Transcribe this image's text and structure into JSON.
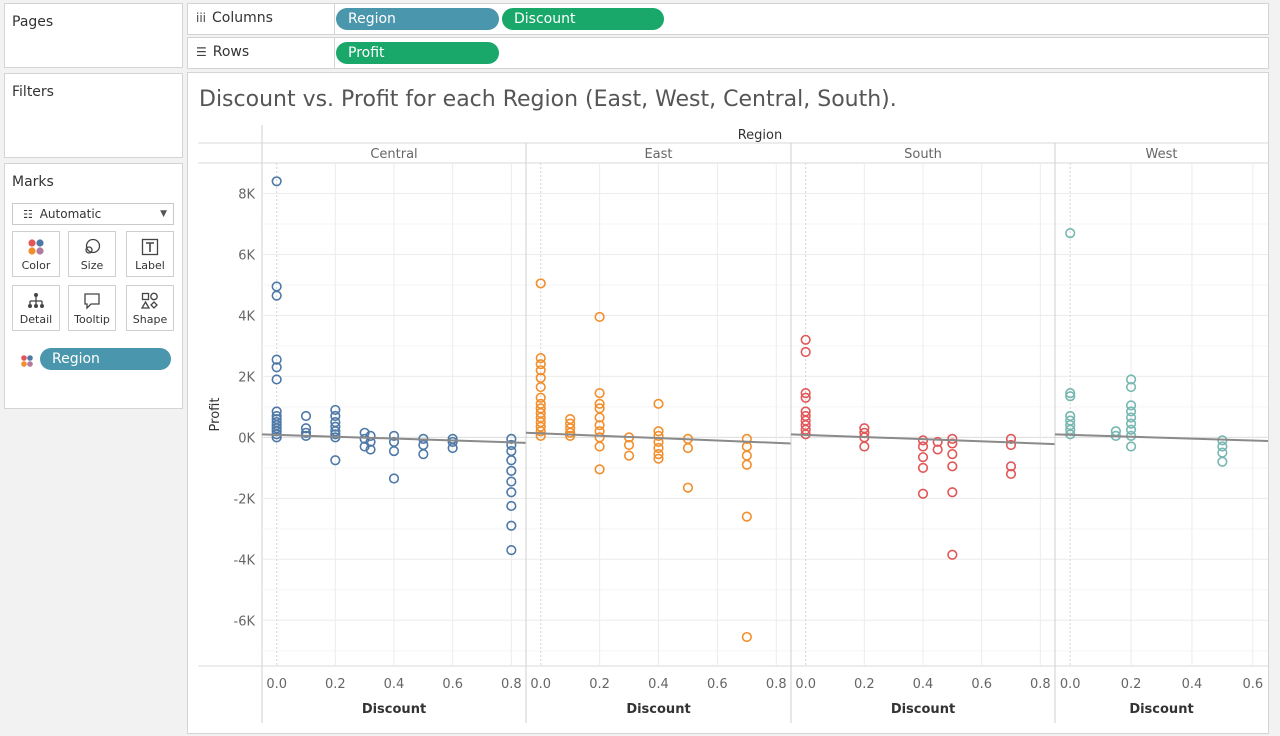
{
  "left_panel": {
    "pages_title": "Pages",
    "filters_title": "Filters",
    "marks_title": "Marks",
    "mark_type": "Automatic",
    "mark_buttons": [
      {
        "label": "Color",
        "icon": "color-icon"
      },
      {
        "label": "Size",
        "icon": "size-icon"
      },
      {
        "label": "Label",
        "icon": "label-icon"
      },
      {
        "label": "Detail",
        "icon": "detail-icon"
      },
      {
        "label": "Tooltip",
        "icon": "tooltip-icon"
      },
      {
        "label": "Shape",
        "icon": "shape-icon"
      }
    ],
    "color_pill": "Region"
  },
  "shelves": {
    "columns_label": "Columns",
    "rows_label": "Rows",
    "column_pills": [
      "Region",
      "Discount"
    ],
    "row_pills": [
      "Profit"
    ]
  },
  "view": {
    "title": "Discount vs. Profit for each Region (East, West, Central, South)."
  },
  "chart_data": {
    "type": "scatter",
    "header": "Region",
    "ylabel": "Profit",
    "xlabel": "Discount",
    "ylim": [
      -7500,
      9000
    ],
    "y_ticks": [
      "8K",
      "6K",
      "4K",
      "2K",
      "0K",
      "-2K",
      "-4K",
      "-6K"
    ],
    "y_tick_values": [
      8000,
      6000,
      4000,
      2000,
      0,
      -2000,
      -4000,
      -6000
    ],
    "grid": true,
    "trend_lines": true,
    "panels": [
      {
        "name": "Central",
        "color": "#4e79a7",
        "xlim": [
          -0.05,
          0.85
        ],
        "x_ticks": [
          "0.0",
          "0.2",
          "0.4",
          "0.6",
          "0.8"
        ],
        "x_tick_values": [
          0,
          0.2,
          0.4,
          0.6,
          0.8
        ],
        "trend": [
          [
            -0.05,
            100
          ],
          [
            0.85,
            -180
          ]
        ],
        "points": [
          [
            0,
            8400
          ],
          [
            0,
            4950
          ],
          [
            0,
            4650
          ],
          [
            0,
            2550
          ],
          [
            0,
            2300
          ],
          [
            0,
            1900
          ],
          [
            0,
            850
          ],
          [
            0,
            700
          ],
          [
            0,
            600
          ],
          [
            0,
            500
          ],
          [
            0,
            400
          ],
          [
            0,
            300
          ],
          [
            0,
            200
          ],
          [
            0,
            100
          ],
          [
            0,
            0
          ],
          [
            0.1,
            700
          ],
          [
            0.1,
            300
          ],
          [
            0.1,
            150
          ],
          [
            0.1,
            50
          ],
          [
            0.2,
            900
          ],
          [
            0.2,
            700
          ],
          [
            0.2,
            500
          ],
          [
            0.2,
            350
          ],
          [
            0.2,
            200
          ],
          [
            0.2,
            100
          ],
          [
            0.2,
            0
          ],
          [
            0.2,
            -750
          ],
          [
            0.3,
            150
          ],
          [
            0.3,
            -50
          ],
          [
            0.3,
            -300
          ],
          [
            0.32,
            50
          ],
          [
            0.32,
            -150
          ],
          [
            0.32,
            -400
          ],
          [
            0.4,
            50
          ],
          [
            0.4,
            -150
          ],
          [
            0.4,
            -450
          ],
          [
            0.4,
            -1350
          ],
          [
            0.5,
            -50
          ],
          [
            0.5,
            -250
          ],
          [
            0.5,
            -550
          ],
          [
            0.6,
            -50
          ],
          [
            0.6,
            -150
          ],
          [
            0.6,
            -350
          ],
          [
            0.8,
            -50
          ],
          [
            0.8,
            -250
          ],
          [
            0.8,
            -450
          ],
          [
            0.8,
            -750
          ],
          [
            0.8,
            -1100
          ],
          [
            0.8,
            -1450
          ],
          [
            0.8,
            -1800
          ],
          [
            0.8,
            -2250
          ],
          [
            0.8,
            -2900
          ],
          [
            0.8,
            -3700
          ]
        ]
      },
      {
        "name": "East",
        "color": "#f28e2b",
        "xlim": [
          -0.05,
          0.85
        ],
        "x_ticks": [
          "0.0",
          "0.2",
          "0.4",
          "0.6",
          "0.8"
        ],
        "x_tick_values": [
          0,
          0.2,
          0.4,
          0.6,
          0.8
        ],
        "trend": [
          [
            -0.05,
            150
          ],
          [
            0.85,
            -200
          ]
        ],
        "points": [
          [
            0,
            5050
          ],
          [
            0,
            2600
          ],
          [
            0,
            2400
          ],
          [
            0,
            2200
          ],
          [
            0,
            1950
          ],
          [
            0,
            1650
          ],
          [
            0,
            1300
          ],
          [
            0,
            1100
          ],
          [
            0,
            950
          ],
          [
            0,
            800
          ],
          [
            0,
            650
          ],
          [
            0,
            500
          ],
          [
            0,
            350
          ],
          [
            0,
            200
          ],
          [
            0,
            50
          ],
          [
            0.1,
            600
          ],
          [
            0.1,
            450
          ],
          [
            0.1,
            300
          ],
          [
            0.1,
            150
          ],
          [
            0.1,
            50
          ],
          [
            0.2,
            3950
          ],
          [
            0.2,
            1450
          ],
          [
            0.2,
            1100
          ],
          [
            0.2,
            950
          ],
          [
            0.2,
            650
          ],
          [
            0.2,
            400
          ],
          [
            0.2,
            200
          ],
          [
            0.2,
            0
          ],
          [
            0.2,
            -300
          ],
          [
            0.2,
            -1050
          ],
          [
            0.3,
            0
          ],
          [
            0.3,
            -250
          ],
          [
            0.3,
            -600
          ],
          [
            0.4,
            1100
          ],
          [
            0.4,
            200
          ],
          [
            0.4,
            50
          ],
          [
            0.4,
            -150
          ],
          [
            0.4,
            -350
          ],
          [
            0.4,
            -550
          ],
          [
            0.4,
            -700
          ],
          [
            0.5,
            -50
          ],
          [
            0.5,
            -350
          ],
          [
            0.5,
            -1650
          ],
          [
            0.7,
            -50
          ],
          [
            0.7,
            -300
          ],
          [
            0.7,
            -600
          ],
          [
            0.7,
            -900
          ],
          [
            0.7,
            -2600
          ],
          [
            0.7,
            -6550
          ]
        ]
      },
      {
        "name": "South",
        "color": "#e15759",
        "xlim": [
          -0.05,
          0.85
        ],
        "x_ticks": [
          "0.0",
          "0.2",
          "0.4",
          "0.6",
          "0.8"
        ],
        "x_tick_values": [
          0,
          0.2,
          0.4,
          0.6,
          0.8
        ],
        "trend": [
          [
            -0.05,
            100
          ],
          [
            0.85,
            -220
          ]
        ],
        "points": [
          [
            0,
            3200
          ],
          [
            0,
            2800
          ],
          [
            0,
            1450
          ],
          [
            0,
            1300
          ],
          [
            0,
            850
          ],
          [
            0,
            700
          ],
          [
            0,
            550
          ],
          [
            0,
            400
          ],
          [
            0,
            250
          ],
          [
            0,
            100
          ],
          [
            0.2,
            300
          ],
          [
            0.2,
            150
          ],
          [
            0.2,
            0
          ],
          [
            0.2,
            -300
          ],
          [
            0.4,
            -100
          ],
          [
            0.4,
            -300
          ],
          [
            0.4,
            -650
          ],
          [
            0.4,
            -1000
          ],
          [
            0.4,
            -1850
          ],
          [
            0.45,
            -150
          ],
          [
            0.45,
            -400
          ],
          [
            0.5,
            -50
          ],
          [
            0.5,
            -200
          ],
          [
            0.5,
            -550
          ],
          [
            0.5,
            -950
          ],
          [
            0.5,
            -1800
          ],
          [
            0.5,
            -3850
          ],
          [
            0.7,
            -50
          ],
          [
            0.7,
            -250
          ],
          [
            0.7,
            -950
          ],
          [
            0.7,
            -1200
          ]
        ]
      },
      {
        "name": "West",
        "color": "#76b7b2",
        "xlim": [
          -0.05,
          0.65
        ],
        "x_ticks": [
          "0.0",
          "0.2",
          "0.4",
          "0.6"
        ],
        "x_tick_values": [
          0,
          0.2,
          0.4,
          0.6
        ],
        "trend": [
          [
            -0.05,
            100
          ],
          [
            0.65,
            -120
          ]
        ],
        "points": [
          [
            0,
            6700
          ],
          [
            0,
            1450
          ],
          [
            0,
            1350
          ],
          [
            0,
            700
          ],
          [
            0,
            550
          ],
          [
            0,
            400
          ],
          [
            0,
            250
          ],
          [
            0,
            100
          ],
          [
            0.15,
            200
          ],
          [
            0.15,
            50
          ],
          [
            0.2,
            1900
          ],
          [
            0.2,
            1650
          ],
          [
            0.2,
            1050
          ],
          [
            0.2,
            850
          ],
          [
            0.2,
            650
          ],
          [
            0.2,
            450
          ],
          [
            0.2,
            250
          ],
          [
            0.2,
            50
          ],
          [
            0.2,
            -300
          ],
          [
            0.5,
            -100
          ],
          [
            0.5,
            -300
          ],
          [
            0.5,
            -500
          ],
          [
            0.5,
            -800
          ]
        ]
      }
    ]
  }
}
